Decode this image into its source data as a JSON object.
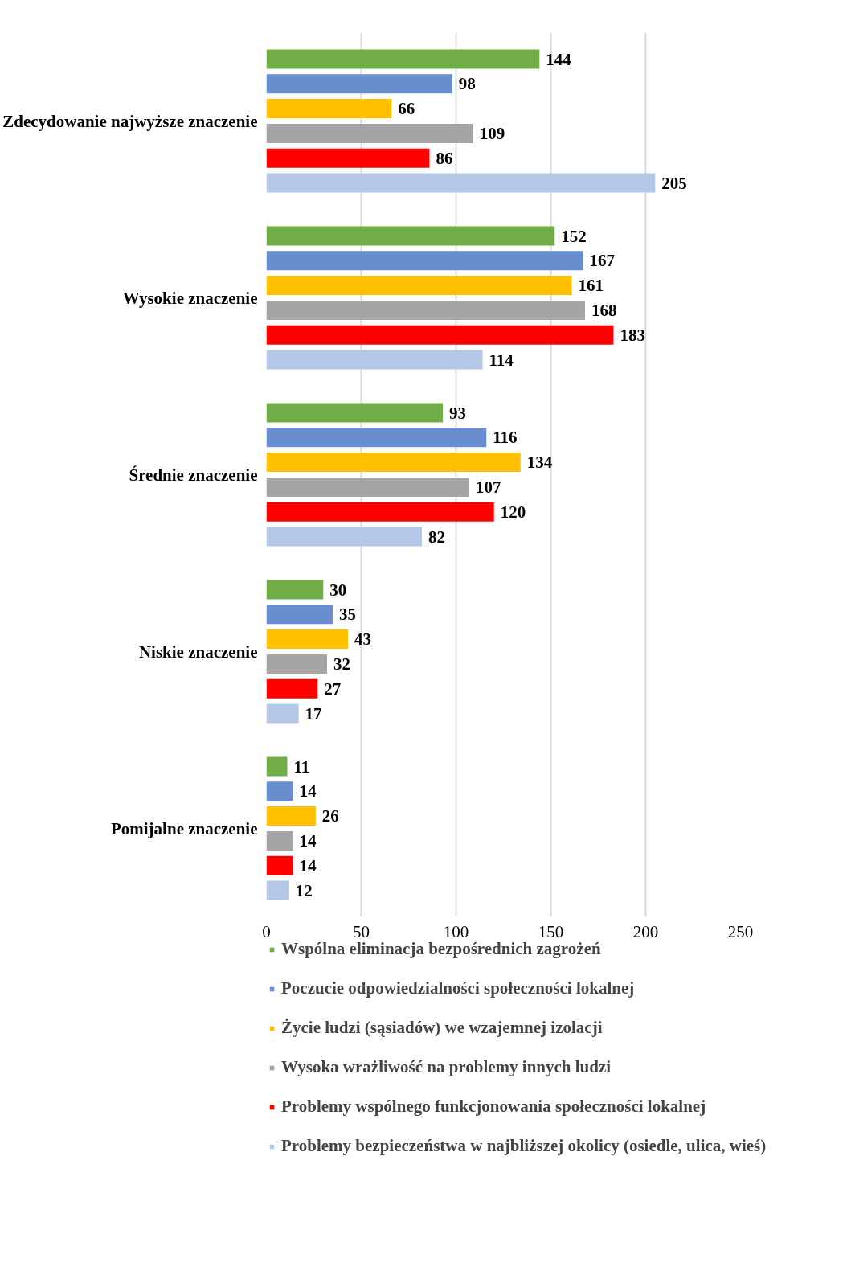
{
  "chart_data": {
    "type": "bar",
    "orientation": "horizontal",
    "categories": [
      "Zdecydowanie najwyższe znaczenie",
      "Wysokie znaczenie",
      "Średnie znaczenie",
      "Niskie znaczenie",
      "Pomijalne znaczenie"
    ],
    "series": [
      {
        "name": "Wspólna eliminacja bezpośrednich zagrożeń",
        "color": "#70ad47",
        "values": [
          144,
          152,
          93,
          30,
          11
        ]
      },
      {
        "name": "Poczucie odpowiedzialności społeczności lokalnej",
        "color": "#698ed0",
        "values": [
          98,
          167,
          116,
          35,
          14
        ]
      },
      {
        "name": "Życie ludzi (sąsiadów) we wzajemnej izolacji",
        "color": "#ffc000",
        "values": [
          66,
          161,
          134,
          43,
          26
        ]
      },
      {
        "name": "Wysoka wrażliwość na problemy innych ludzi",
        "color": "#a5a5a5",
        "values": [
          109,
          168,
          107,
          32,
          14
        ]
      },
      {
        "name": "Problemy wspólnego funkcjonowania społeczności lokalnej",
        "color": "#ff0000",
        "values": [
          86,
          183,
          120,
          27,
          14
        ]
      },
      {
        "name": "Problemy bezpieczeństwa w najbliższej okolicy (osiedle, ulica, wieś)",
        "color": "#b4c7e7",
        "values": [
          205,
          114,
          82,
          17,
          12
        ]
      }
    ],
    "xlim": [
      0,
      250
    ],
    "xticks": [
      0,
      50,
      100,
      150,
      200,
      250
    ],
    "grid": "x",
    "legend": "bottom",
    "data_labels": true
  }
}
